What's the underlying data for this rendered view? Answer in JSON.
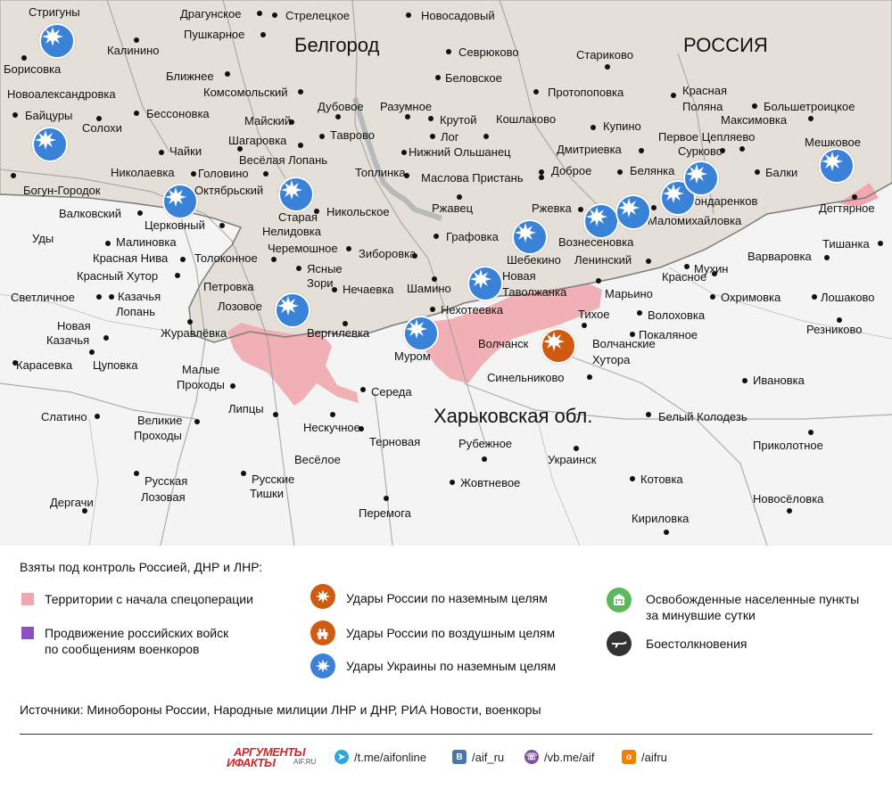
{
  "map": {
    "region_labels": {
      "belgorod": "Белгород",
      "russia": "РОССИЯ",
      "kharkov": "Харьковская обл."
    },
    "places": [
      "Стригуны",
      "Драгунское",
      "Стрелецкое",
      "Новосадовый",
      "Пушкарное",
      "Калинино",
      "Борисовка",
      "Севрюково",
      "Беловское",
      "Стариково",
      "Ближнее",
      "Протопоповка",
      "Комсомольский",
      "Красная",
      "Новоалександровка",
      "Поляна",
      "Большетроицкое",
      "Дубовое",
      "Разумное",
      "Бессоновка",
      "Максимовка",
      "Байцуры",
      "Купино",
      "Крутой",
      "Кошлаково",
      "Солохи",
      "Майский",
      "Таврово",
      "Лог",
      "Первое Цепляево",
      "Мешковое",
      "Шагаровка",
      "Нижний Ольшанец",
      "Дмитриевка",
      "Чайки",
      "Весёлая Лопань",
      "Сурково",
      "Белянка",
      "Балки",
      "Николаевка",
      "Головино",
      "Доброе",
      "Топлинка",
      "Маслова Пристань",
      "Богун-Городок",
      "Октябрьский",
      "Бондаренков",
      "Ржавец",
      "Ржевка",
      "Дегтярное",
      "Маломихайловка",
      "Валковский",
      "Старая",
      "Никольское",
      "Церковный",
      "Нелидовка",
      "Уды",
      "Графовка",
      "Тишанка",
      "Вознесеновка",
      "Малиновка",
      "Черемошное",
      "Шебекино",
      "Зиборовка",
      "Красная Нива",
      "Толоконное",
      "Варваровка",
      "Ленинский",
      "Мухин",
      "Ясные",
      "Красный Хутор",
      "Зори",
      "Красное",
      "Новая",
      "Петровка",
      "Нечаевка",
      "Шамино",
      "Охримовка",
      "Светличное",
      "Лошаково",
      "Таволжанка",
      "Казачья",
      "Марьино",
      "Лозовое",
      "Тихое",
      "Лопань",
      "Нехотеевка",
      "Волоховка",
      "Новая",
      "Резниково",
      "Журавлёвка",
      "Вергилевка",
      "Покаляное",
      "Казачья",
      "Волчанск",
      "Волчанские",
      "Карасевка",
      "Цуповка",
      "Муром",
      "Хутора",
      "Малые",
      "Проходы",
      "Ивановка",
      "Середа",
      "Синельниково",
      "Слатино",
      "Липцы",
      "Белый Колодезь",
      "Великие",
      "Нескучное",
      "Проходы",
      "Терновая",
      "Рубежное",
      "Приколотное",
      "Весёлое",
      "Украинск",
      "Русская",
      "Русские",
      "Лозовая",
      "Тишки",
      "Котовка",
      "Жовтневое",
      "Дергачи",
      "Новосёловка",
      "Перемога",
      "Кириловка"
    ]
  },
  "legend": {
    "title": "Взяты под контроль Россией, ДНР и ЛНР:",
    "items": [
      {
        "label": "Территории с начала спецоперации",
        "color": "#f0a8ae"
      },
      {
        "label_1": "Продвижение российских войск",
        "label_2": "по сообщениям военкоров",
        "color": "#8e4fc0"
      },
      {
        "label": "Удары России по наземным целям",
        "color": "#cf5a11",
        "icon": "explosion-icon"
      },
      {
        "label": "Удары России по воздушным целям",
        "color": "#cf5a11",
        "icon": "aircraft-strike-icon"
      },
      {
        "label": "Удары Украины по наземным целям",
        "color": "#3a82d8",
        "icon": "explosion-icon"
      },
      {
        "label_1": "Освобожденные населенные пункты",
        "label_2": "за минувшие сутки",
        "color": "#5cb85c",
        "icon": "building-icon"
      },
      {
        "label": "Боестолкновения",
        "color": "#333333",
        "icon": "rifle-icon"
      }
    ],
    "sources": "Источники: Минобороны России, Народные милиции ЛНР и ДНР, РИА Новости, военкоры"
  },
  "footer": {
    "logo_line1": "АРГУМЕНТЫ",
    "logo_line2": "ИФАКТЫ",
    "logo_line3": "AIF.RU",
    "telegram": "/t.me/aifonline",
    "vk": "/aif_ru",
    "viber": "/vb.me/aif",
    "ok": "/aifru"
  }
}
